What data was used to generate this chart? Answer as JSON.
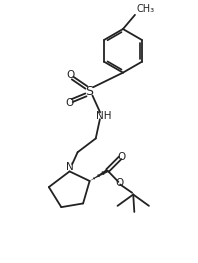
{
  "bg_color": "#ffffff",
  "line_color": "#222222",
  "line_width": 1.3,
  "font_size": 7.5,
  "figsize": [
    1.98,
    2.63
  ],
  "dpi": 100,
  "xlim": [
    0,
    9
  ],
  "ylim": [
    0,
    12
  ]
}
